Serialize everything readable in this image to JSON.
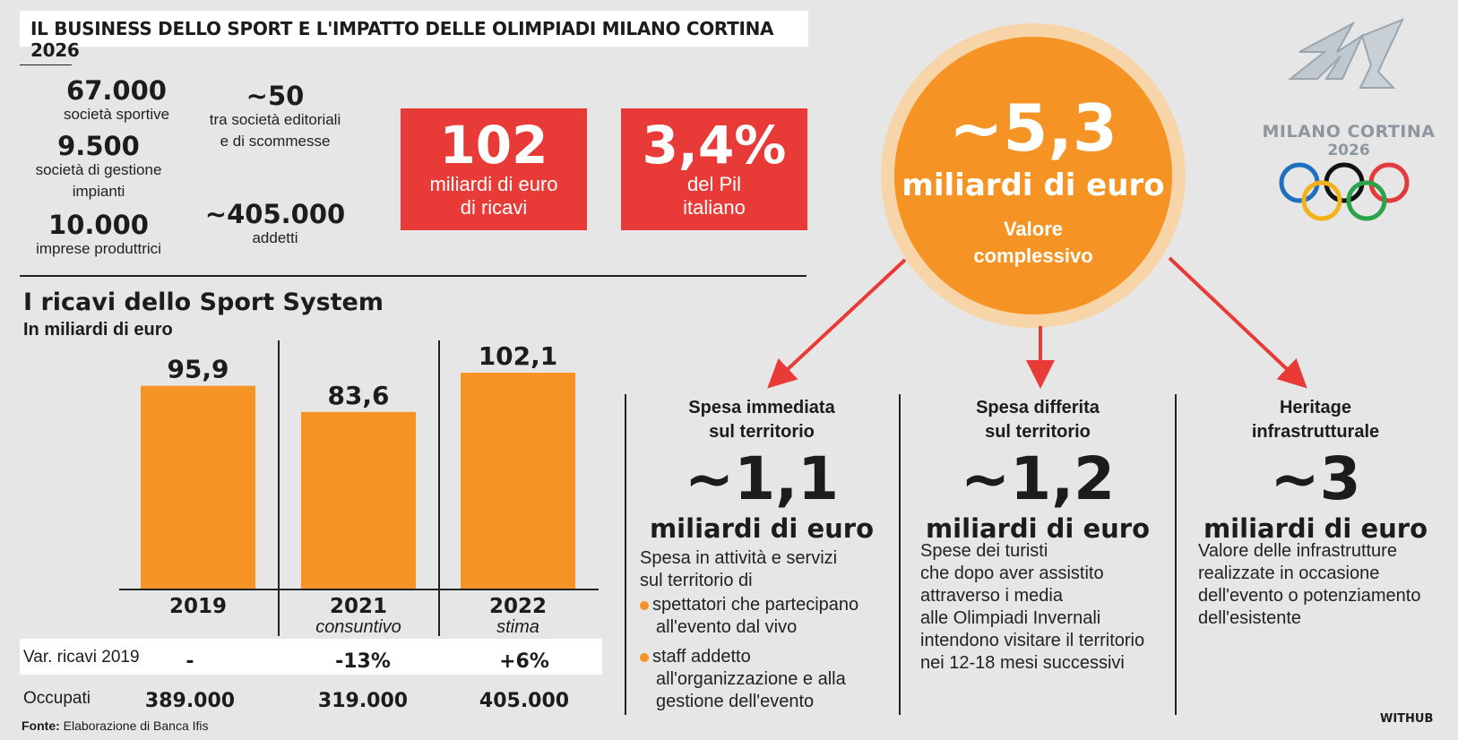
{
  "title": "IL BUSINESS DELLO SPORT E L'IMPATTO DELLE OLIMPIADI MILANO CORTINA 2026",
  "stats": [
    {
      "value": "67.000",
      "label": "società sportive"
    },
    {
      "value": "9.500",
      "label_lines": [
        "società di gestione",
        "impianti"
      ]
    },
    {
      "value": "10.000",
      "label": "imprese produttrici"
    },
    {
      "value": "~50",
      "label_lines": [
        "tra società editoriali",
        "e di scommesse"
      ]
    },
    {
      "value": "~405.000",
      "label": "addetti"
    }
  ],
  "red_boxes": [
    {
      "value": "102",
      "lines": [
        "miliardi di euro",
        "di ricavi"
      ]
    },
    {
      "value": "3,4%",
      "lines": [
        "del Pil",
        "italiano"
      ]
    }
  ],
  "circle": {
    "value": "~5,3",
    "unit": "miliardi di euro",
    "lines": [
      "Valore",
      "complessivo"
    ]
  },
  "columns": [
    {
      "head": [
        "Spesa immediata",
        "sul territorio"
      ],
      "value": "~1,1",
      "unit": "miliardi di euro",
      "desc": [
        "Spesa in attività e servizi",
        "sul territorio di"
      ],
      "bullets": [
        [
          "spettatori che partecipano",
          "all'evento dal vivo"
        ],
        [
          "staff addetto",
          "all'organizzazione e alla",
          "gestione dell'evento"
        ]
      ]
    },
    {
      "head": [
        "Spesa differita",
        "sul territorio"
      ],
      "value": "~1,2",
      "unit": "miliardi di euro",
      "desc": [
        "Spese dei turisti",
        "che dopo aver assistito",
        "attraverso i media",
        "alle Olimpiadi Invernali",
        "intendono visitare il territorio",
        "nei 12-18 mesi successivi"
      ]
    },
    {
      "head": [
        "Heritage",
        "infrastrutturale"
      ],
      "value": "~3",
      "unit": "miliardi di euro",
      "desc": [
        "Valore delle infrastrutture",
        "realizzate in occasione",
        "dell'evento o potenziamento",
        "dell'esistente"
      ]
    }
  ],
  "logo": {
    "text": "MILANO CORTINA",
    "year": "2026"
  },
  "chart_data": {
    "type": "bar",
    "title": "I ricavi dello Sport System",
    "subtitle": "In miliardi di euro",
    "categories": [
      "2019",
      "2021",
      "2022"
    ],
    "category_notes": [
      "",
      "consuntivo",
      "stima"
    ],
    "values": [
      95.9,
      83.6,
      102.1
    ],
    "value_labels": [
      "95,9",
      "83,6",
      "102,1"
    ],
    "ylim": [
      0,
      102.1
    ],
    "bar_color": "#f59424"
  },
  "table": {
    "rows": [
      {
        "label": "Var. ricavi 2019",
        "cells": [
          "-",
          "-13%",
          "+6%"
        ]
      },
      {
        "label": "Occupati",
        "cells": [
          "389.000",
          "319.000",
          "405.000"
        ]
      }
    ]
  },
  "source": {
    "prefix": "Fonte:",
    "text": " Elaborazione di Banca Ifis"
  },
  "credit": "WITHUB",
  "colors": {
    "orange": "#f59424",
    "red": "#e83b37",
    "background": "#e6e6e6"
  }
}
